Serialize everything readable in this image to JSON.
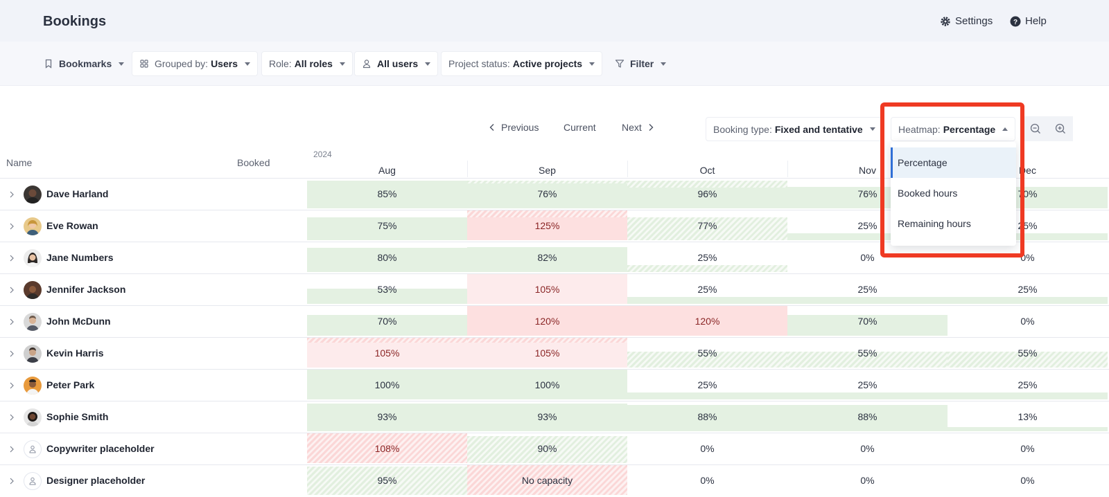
{
  "app": {
    "title": "Bookings",
    "settings_label": "Settings",
    "help_label": "Help"
  },
  "filters": {
    "bookmarks": "Bookmarks",
    "grouped_by_label": "Grouped by:",
    "grouped_by_value": "Users",
    "role_label": "Role:",
    "role_value": "All roles",
    "users_value": "All users",
    "project_status_label": "Project status:",
    "project_status_value": "Active projects",
    "filter": "Filter"
  },
  "navigation": {
    "previous": "Previous",
    "current": "Current",
    "next": "Next"
  },
  "booking_type": {
    "label": "Booking type:",
    "value": "Fixed and tentative"
  },
  "heatmap": {
    "label": "Heatmap:",
    "value": "Percentage",
    "options": [
      "Percentage",
      "Booked hours",
      "Remaining hours"
    ]
  },
  "table": {
    "name_header": "Name",
    "booked_header": "Booked",
    "year": "2024",
    "months": [
      "Aug",
      "Sep",
      "Oct",
      "Nov",
      "Dec"
    ],
    "rows": [
      {
        "name": "Dave Harland",
        "values": [
          "85%",
          "76%",
          "96%",
          "76%",
          "70%"
        ]
      },
      {
        "name": "Eve Rowan",
        "values": [
          "75%",
          "125%",
          "77%",
          "25%",
          "25%"
        ]
      },
      {
        "name": "Jane Numbers",
        "values": [
          "80%",
          "82%",
          "25%",
          "0%",
          "0%"
        ]
      },
      {
        "name": "Jennifer Jackson",
        "values": [
          "53%",
          "105%",
          "25%",
          "25%",
          "25%"
        ]
      },
      {
        "name": "John McDunn",
        "values": [
          "70%",
          "120%",
          "120%",
          "70%",
          "0%"
        ]
      },
      {
        "name": "Kevin Harris",
        "values": [
          "105%",
          "105%",
          "55%",
          "55%",
          "55%"
        ]
      },
      {
        "name": "Peter Park",
        "values": [
          "100%",
          "100%",
          "25%",
          "25%",
          "25%"
        ]
      },
      {
        "name": "Sophie Smith",
        "values": [
          "93%",
          "93%",
          "88%",
          "88%",
          "13%"
        ]
      },
      {
        "name": "Copywriter placeholder",
        "values": [
          "108%",
          "90%",
          "0%",
          "0%",
          "0%"
        ]
      },
      {
        "name": "Designer placeholder",
        "values": [
          "95%",
          "No capacity",
          "0%",
          "0%",
          "0%"
        ]
      }
    ]
  },
  "colors": {
    "booked_fill": "#e4f1e2",
    "overbooked_fill": "#fde0e0",
    "tentative_pattern": "#e2efdf",
    "highlight_box": "#ef3a23",
    "selected_option_bar": "#2f6fd6"
  }
}
